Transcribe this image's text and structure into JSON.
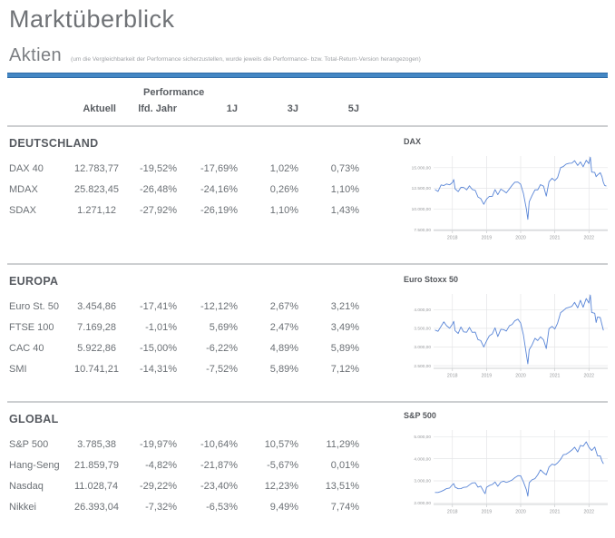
{
  "header": {
    "title": "Marktüberblick",
    "section": "Aktien",
    "note": "(um die Vergleichbarkeit der Performance sicherzustellen, wurde jeweils die Performance- bzw. Total-Return-Version herangezogen)"
  },
  "table": {
    "performance_label": "Performance",
    "columns": [
      "Aktuell",
      "lfd. Jahr",
      "1J",
      "3J",
      "5J"
    ],
    "groups": [
      {
        "name": "DEUTSCHLAND",
        "rows": [
          {
            "label": "DAX 40",
            "values": [
              "12.783,77",
              "-19,52%",
              "-17,69%",
              "1,02%",
              "0,73%"
            ]
          },
          {
            "label": "MDAX",
            "values": [
              "25.823,45",
              "-26,48%",
              "-24,16%",
              "0,26%",
              "1,10%"
            ]
          },
          {
            "label": "SDAX",
            "values": [
              "1.271,12",
              "-27,92%",
              "-26,19%",
              "1,10%",
              "1,43%"
            ]
          }
        ]
      },
      {
        "name": "EUROPA",
        "rows": [
          {
            "label": "Euro St. 50",
            "values": [
              "3.454,86",
              "-17,41%",
              "-12,12%",
              "2,67%",
              "3,21%"
            ]
          },
          {
            "label": "FTSE 100",
            "values": [
              "7.169,28",
              "-1,01%",
              "5,69%",
              "2,47%",
              "3,49%"
            ]
          },
          {
            "label": "CAC 40",
            "values": [
              "5.922,86",
              "-15,00%",
              "-6,22%",
              "4,89%",
              "5,89%"
            ]
          },
          {
            "label": "SMI",
            "values": [
              "10.741,21",
              "-14,31%",
              "-7,52%",
              "5,89%",
              "7,12%"
            ]
          }
        ]
      },
      {
        "name": "GLOBAL",
        "rows": [
          {
            "label": "S&P 500",
            "values": [
              "3.785,38",
              "-19,97%",
              "-10,64%",
              "10,57%",
              "11,29%"
            ]
          },
          {
            "label": "Hang-Seng",
            "values": [
              "21.859,79",
              "-4,82%",
              "-21,87%",
              "-5,67%",
              "0,01%"
            ]
          },
          {
            "label": "Nasdaq",
            "values": [
              "11.028,74",
              "-29,22%",
              "-23,40%",
              "12,23%",
              "13,51%"
            ]
          },
          {
            "label": "Nikkei",
            "values": [
              "26.393,04",
              "-7,32%",
              "-6,53%",
              "9,49%",
              "7,74%"
            ]
          }
        ]
      }
    ]
  },
  "colors": {
    "accent_rule": "#4487c4",
    "line": "#5a86d7",
    "grid": "#e4e5e7",
    "axis": "#cfd1d3",
    "tick_text": "#97999c"
  },
  "chart_data": [
    {
      "type": "line",
      "title": "DAX",
      "legend": "none",
      "grid": true,
      "xlim": [
        2017.45,
        2022.55
      ],
      "ylim": [
        7400,
        16400
      ],
      "x_ticks": [
        {
          "v": 2018,
          "label": "2018"
        },
        {
          "v": 2019,
          "label": "2019"
        },
        {
          "v": 2020,
          "label": "2020"
        },
        {
          "v": 2021,
          "label": "2021"
        },
        {
          "v": 2022,
          "label": "2022"
        }
      ],
      "y_ticks": [
        {
          "v": 15000,
          "label": "15.000,00"
        },
        {
          "v": 12500,
          "label": "12.500,00"
        },
        {
          "v": 10000,
          "label": "10.000,00"
        },
        {
          "v": 7500,
          "label": "7.500,00"
        }
      ],
      "points": [
        [
          2017.5,
          12325
        ],
        [
          2017.58,
          12118
        ],
        [
          2017.67,
          12906
        ],
        [
          2017.75,
          12829
        ],
        [
          2017.83,
          13024
        ],
        [
          2017.92,
          12918
        ],
        [
          2018.0,
          13190
        ],
        [
          2018.04,
          13560
        ],
        [
          2018.08,
          12436
        ],
        [
          2018.17,
          12097
        ],
        [
          2018.25,
          12612
        ],
        [
          2018.33,
          12605
        ],
        [
          2018.42,
          12306
        ],
        [
          2018.5,
          12806
        ],
        [
          2018.58,
          12364
        ],
        [
          2018.67,
          12247
        ],
        [
          2018.75,
          11447
        ],
        [
          2018.83,
          11257
        ],
        [
          2018.92,
          10559
        ],
        [
          2019.0,
          11173
        ],
        [
          2019.08,
          11516
        ],
        [
          2019.17,
          11526
        ],
        [
          2019.25,
          12344
        ],
        [
          2019.33,
          11727
        ],
        [
          2019.42,
          12399
        ],
        [
          2019.5,
          12189
        ],
        [
          2019.58,
          11939
        ],
        [
          2019.67,
          12428
        ],
        [
          2019.75,
          12867
        ],
        [
          2019.83,
          13236
        ],
        [
          2019.92,
          13249
        ],
        [
          2020.0,
          12982
        ],
        [
          2020.08,
          11890
        ],
        [
          2020.17,
          9936
        ],
        [
          2020.21,
          8742
        ],
        [
          2020.25,
          10862
        ],
        [
          2020.33,
          11587
        ],
        [
          2020.42,
          12311
        ],
        [
          2020.5,
          12313
        ],
        [
          2020.58,
          12945
        ],
        [
          2020.67,
          12761
        ],
        [
          2020.75,
          11556
        ],
        [
          2020.83,
          13291
        ],
        [
          2020.92,
          13719
        ],
        [
          2021.0,
          13433
        ],
        [
          2021.08,
          13786
        ],
        [
          2021.17,
          15008
        ],
        [
          2021.25,
          15136
        ],
        [
          2021.33,
          15421
        ],
        [
          2021.42,
          15531
        ],
        [
          2021.5,
          15544
        ],
        [
          2021.58,
          15835
        ],
        [
          2021.67,
          15261
        ],
        [
          2021.75,
          15689
        ],
        [
          2021.83,
          15100
        ],
        [
          2021.92,
          15885
        ],
        [
          2022.0,
          15471
        ],
        [
          2022.04,
          16272
        ],
        [
          2022.08,
          14461
        ],
        [
          2022.17,
          14415
        ],
        [
          2022.21,
          13905
        ],
        [
          2022.25,
          14098
        ],
        [
          2022.33,
          14388
        ],
        [
          2022.38,
          13923
        ],
        [
          2022.42,
          13231
        ],
        [
          2022.46,
          12834
        ],
        [
          2022.5,
          12784
        ]
      ]
    },
    {
      "type": "line",
      "title": "Euro Stoxx 50",
      "legend": "none",
      "grid": true,
      "xlim": [
        2017.45,
        2022.55
      ],
      "ylim": [
        2430,
        4420
      ],
      "x_ticks": [
        {
          "v": 2018,
          "label": "2018"
        },
        {
          "v": 2019,
          "label": "2019"
        },
        {
          "v": 2020,
          "label": "2020"
        },
        {
          "v": 2021,
          "label": "2021"
        },
        {
          "v": 2022,
          "label": "2022"
        }
      ],
      "y_ticks": [
        {
          "v": 4000,
          "label": "4.000,00"
        },
        {
          "v": 3500,
          "label": "3.500,00"
        },
        {
          "v": 3000,
          "label": "3.000,00"
        },
        {
          "v": 2500,
          "label": "2.500,00"
        }
      ],
      "points": [
        [
          2017.5,
          3450
        ],
        [
          2017.58,
          3421
        ],
        [
          2017.67,
          3555
        ],
        [
          2017.75,
          3674
        ],
        [
          2017.83,
          3570
        ],
        [
          2017.92,
          3504
        ],
        [
          2018.0,
          3609
        ],
        [
          2018.04,
          3687
        ],
        [
          2018.08,
          3439
        ],
        [
          2018.17,
          3362
        ],
        [
          2018.25,
          3537
        ],
        [
          2018.33,
          3406
        ],
        [
          2018.42,
          3396
        ],
        [
          2018.5,
          3525
        ],
        [
          2018.58,
          3393
        ],
        [
          2018.67,
          3399
        ],
        [
          2018.75,
          3198
        ],
        [
          2018.83,
          3173
        ],
        [
          2018.92,
          3001
        ],
        [
          2019.0,
          3159
        ],
        [
          2019.08,
          3298
        ],
        [
          2019.17,
          3352
        ],
        [
          2019.25,
          3515
        ],
        [
          2019.33,
          3280
        ],
        [
          2019.42,
          3474
        ],
        [
          2019.5,
          3467
        ],
        [
          2019.58,
          3427
        ],
        [
          2019.67,
          3569
        ],
        [
          2019.75,
          3604
        ],
        [
          2019.83,
          3703
        ],
        [
          2019.92,
          3745
        ],
        [
          2020.0,
          3641
        ],
        [
          2020.08,
          3329
        ],
        [
          2020.17,
          2787
        ],
        [
          2020.21,
          2549
        ],
        [
          2020.25,
          2928
        ],
        [
          2020.33,
          3050
        ],
        [
          2020.42,
          3234
        ],
        [
          2020.5,
          3174
        ],
        [
          2020.58,
          3273
        ],
        [
          2020.67,
          3194
        ],
        [
          2020.75,
          2958
        ],
        [
          2020.83,
          3493
        ],
        [
          2020.92,
          3553
        ],
        [
          2021.0,
          3481
        ],
        [
          2021.08,
          3636
        ],
        [
          2021.17,
          3919
        ],
        [
          2021.25,
          3975
        ],
        [
          2021.33,
          4039
        ],
        [
          2021.42,
          4064
        ],
        [
          2021.5,
          4089
        ],
        [
          2021.58,
          4196
        ],
        [
          2021.67,
          4048
        ],
        [
          2021.75,
          4251
        ],
        [
          2021.83,
          4063
        ],
        [
          2021.92,
          4298
        ],
        [
          2022.0,
          4175
        ],
        [
          2022.04,
          4392
        ],
        [
          2022.08,
          3924
        ],
        [
          2022.17,
          3903
        ],
        [
          2022.21,
          3656
        ],
        [
          2022.25,
          3803
        ],
        [
          2022.33,
          3789
        ],
        [
          2022.38,
          3600
        ],
        [
          2022.42,
          3455
        ]
      ]
    },
    {
      "type": "line",
      "title": "S&P 500",
      "legend": "none",
      "grid": true,
      "xlim": [
        2017.45,
        2022.55
      ],
      "ylim": [
        1930,
        5300
      ],
      "x_ticks": [
        {
          "v": 2018,
          "label": "2018"
        },
        {
          "v": 2019,
          "label": "2019"
        },
        {
          "v": 2020,
          "label": "2020"
        },
        {
          "v": 2021,
          "label": "2021"
        },
        {
          "v": 2022,
          "label": "2022"
        }
      ],
      "y_ticks": [
        {
          "v": 5000,
          "label": "5.000,00"
        },
        {
          "v": 4000,
          "label": "4.000,00"
        },
        {
          "v": 3000,
          "label": "3.000,00"
        },
        {
          "v": 2000,
          "label": "2.000,00"
        }
      ],
      "points": [
        [
          2017.5,
          2470
        ],
        [
          2017.58,
          2472
        ],
        [
          2017.67,
          2519
        ],
        [
          2017.75,
          2575
        ],
        [
          2017.83,
          2648
        ],
        [
          2017.92,
          2674
        ],
        [
          2018.0,
          2824
        ],
        [
          2018.04,
          2873
        ],
        [
          2018.08,
          2714
        ],
        [
          2018.17,
          2641
        ],
        [
          2018.25,
          2648
        ],
        [
          2018.33,
          2705
        ],
        [
          2018.42,
          2718
        ],
        [
          2018.5,
          2816
        ],
        [
          2018.58,
          2902
        ],
        [
          2018.67,
          2914
        ],
        [
          2018.75,
          2712
        ],
        [
          2018.83,
          2760
        ],
        [
          2018.92,
          2507
        ],
        [
          2018.96,
          2416
        ],
        [
          2019.0,
          2704
        ],
        [
          2019.08,
          2784
        ],
        [
          2019.17,
          2834
        ],
        [
          2019.25,
          2946
        ],
        [
          2019.33,
          2752
        ],
        [
          2019.42,
          2942
        ],
        [
          2019.5,
          2980
        ],
        [
          2019.58,
          2926
        ],
        [
          2019.67,
          2977
        ],
        [
          2019.75,
          3038
        ],
        [
          2019.83,
          3141
        ],
        [
          2019.92,
          3231
        ],
        [
          2020.0,
          3226
        ],
        [
          2020.08,
          2954
        ],
        [
          2020.17,
          2585
        ],
        [
          2020.21,
          2305
        ],
        [
          2020.25,
          2912
        ],
        [
          2020.33,
          3044
        ],
        [
          2020.42,
          3100
        ],
        [
          2020.5,
          3271
        ],
        [
          2020.58,
          3500
        ],
        [
          2020.67,
          3363
        ],
        [
          2020.75,
          3270
        ],
        [
          2020.83,
          3622
        ],
        [
          2020.92,
          3756
        ],
        [
          2021.0,
          3714
        ],
        [
          2021.08,
          3811
        ],
        [
          2021.17,
          3973
        ],
        [
          2021.25,
          4181
        ],
        [
          2021.33,
          4204
        ],
        [
          2021.42,
          4298
        ],
        [
          2021.5,
          4395
        ],
        [
          2021.58,
          4523
        ],
        [
          2021.67,
          4308
        ],
        [
          2021.75,
          4605
        ],
        [
          2021.83,
          4567
        ],
        [
          2021.92,
          4766
        ],
        [
          2022.0,
          4516
        ],
        [
          2022.08,
          4374
        ],
        [
          2022.17,
          4530
        ],
        [
          2022.25,
          4132
        ],
        [
          2022.33,
          4132
        ],
        [
          2022.38,
          3900
        ],
        [
          2022.42,
          3785
        ]
      ]
    }
  ]
}
